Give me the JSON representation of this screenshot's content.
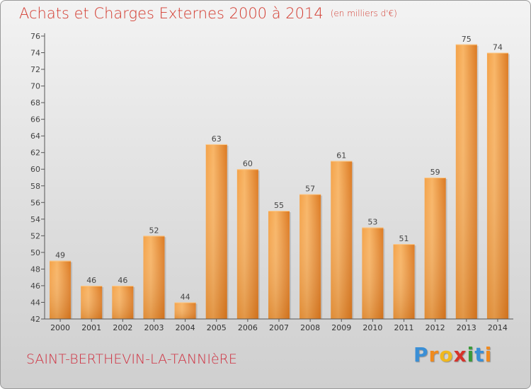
{
  "chart_data": {
    "type": "bar",
    "title": "Achats et Charges Externes 2000 à 2014",
    "unit": "(en milliers d'€)",
    "categories": [
      "2000",
      "2001",
      "2002",
      "2003",
      "2004",
      "2005",
      "2006",
      "2007",
      "2008",
      "2009",
      "2010",
      "2011",
      "2012",
      "2013",
      "2014"
    ],
    "values": [
      49,
      46,
      46,
      52,
      44,
      63,
      60,
      55,
      57,
      61,
      53,
      51,
      59,
      75,
      74
    ],
    "ylim": [
      42,
      76
    ],
    "yticks": [
      42,
      44,
      46,
      48,
      50,
      52,
      54,
      56,
      58,
      60,
      62,
      64,
      66,
      68,
      70,
      72,
      74,
      76
    ],
    "grid": false,
    "legend": "none",
    "bar_color_light": "#f6a94f",
    "bar_color_dark": "#d87418"
  },
  "footer": {
    "location": "SAINT-BERTHEVIN-LA-TANNIèRE",
    "brand_letters": [
      "P",
      "r",
      "o",
      "x",
      "i",
      "t",
      "i"
    ],
    "brand_colors": [
      "#3a8fd6",
      "#f08a1e",
      "#f0b81e",
      "#d6322a",
      "#3a9a3a",
      "#3a8fd6",
      "#f08a1e"
    ]
  }
}
